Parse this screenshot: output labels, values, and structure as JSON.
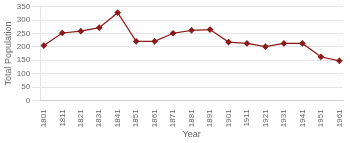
{
  "chart_data": {
    "type": "line",
    "x": [
      1801,
      1811,
      1821,
      1831,
      1841,
      1851,
      1861,
      1871,
      1881,
      1891,
      1901,
      1911,
      1921,
      1931,
      1941,
      1951,
      1961
    ],
    "values": [
      205,
      252,
      259,
      272,
      328,
      221,
      221,
      251,
      262,
      265,
      218,
      213,
      201,
      213,
      213,
      163,
      148
    ],
    "color": "#8B1A1A",
    "marker": "diamond",
    "xlabel": "Year",
    "ylabel": "Total Population",
    "xlim": [
      1799,
      1963
    ],
    "xticks": [
      1801,
      1811,
      1821,
      1831,
      1841,
      1851,
      1861,
      1871,
      1881,
      1891,
      1901,
      1911,
      1921,
      1931,
      1941,
      1951,
      1961
    ],
    "ylim": [
      0,
      350
    ],
    "yticks": [
      0,
      50,
      100,
      150,
      200,
      250,
      300,
      350
    ],
    "grid": "y"
  }
}
